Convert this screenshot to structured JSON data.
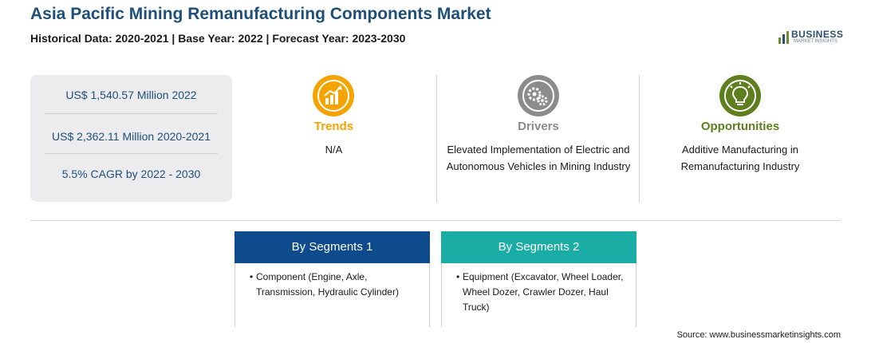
{
  "header": {
    "title": "Asia Pacific Mining Remanufacturing Components Market",
    "subtitle": "Historical Data: 2020-2021 | Base Year: 2022 | Forecast Year: 2023-2030"
  },
  "logo": {
    "name": "BUSINESS",
    "tagline": "MARKET INSIGHTS"
  },
  "stats": [
    "US$ 1,540.57 Million 2022",
    "US$ 2,362.11 Million 2020-2021",
    "5.5% CAGR by 2022 - 2030"
  ],
  "columns": {
    "trends": {
      "title": "Trends",
      "text": "N/A",
      "color": "#f5a300",
      "icon": "trend-chart-icon"
    },
    "drivers": {
      "title": "Drivers",
      "text": "Elevated Implementation of Electric and Autonomous Vehicles in Mining Industry",
      "color": "#8c8c8c",
      "icon": "gears-icon"
    },
    "opportunities": {
      "title": "Opportunities",
      "text": "Additive Manufacturing in Remanufacturing Industry",
      "color": "#5d7f1e",
      "icon": "lightbulb-icon"
    }
  },
  "segments": [
    {
      "title": "By Segments 1",
      "color": "#0d4b8c",
      "item": "Component (Engine, Axle, Transmission, Hydraulic Cylinder)"
    },
    {
      "title": "By Segments 2",
      "color": "#1aada6",
      "item": "Equipment (Excavator, Wheel Loader, Wheel Dozer, Crawler Dozer, Haul Truck)"
    }
  ],
  "source": "Source: www.businessmarketinsights.com"
}
